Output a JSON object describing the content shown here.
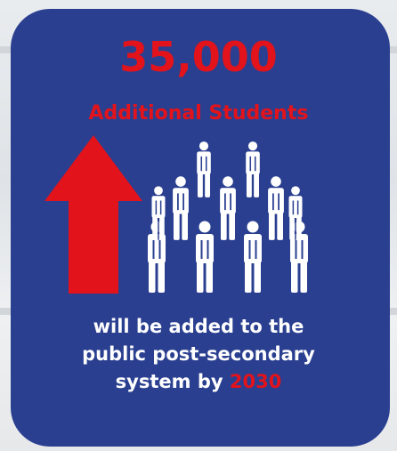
{
  "headline": "35,000",
  "subhead": "Additional Students",
  "caption": {
    "line1": "will be added to the",
    "line2": "public post-secondary",
    "line3_prefix": "system by ",
    "line3_year": "2030"
  },
  "icons": {
    "arrow": "up-arrow-icon",
    "people": "person-icon"
  },
  "colors": {
    "card": "#2a3f90",
    "accent": "#e3131b",
    "text": "#ffffff"
  }
}
